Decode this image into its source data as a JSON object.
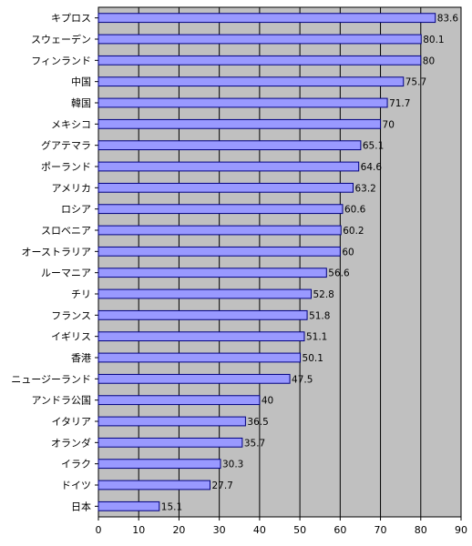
{
  "chart_data": {
    "type": "bar",
    "orientation": "horizontal",
    "title": "",
    "xlabel": "",
    "ylabel": "",
    "xlim": [
      0,
      90
    ],
    "ticks": [
      0,
      10,
      20,
      30,
      40,
      50,
      60,
      70,
      80,
      90
    ],
    "grid": true,
    "legend": "none",
    "colors": {
      "plot_background": "#c0c0c0",
      "bar_fill": "#9999ff",
      "bar_edge": "#000080",
      "gridline": "#000000"
    },
    "categories": [
      "キプロス",
      "スウェーデン",
      "フィンランド",
      "中国",
      "韓国",
      "メキシコ",
      "グアテマラ",
      "ポーランド",
      "アメリカ",
      "ロシア",
      "スロベニア",
      "オーストラリア",
      "ルーマニア",
      "チリ",
      "フランス",
      "イギリス",
      "香港",
      "ニュージーランド",
      "アンドラ公国",
      "イタリア",
      "オランダ",
      "イラク",
      "ドイツ",
      "日本"
    ],
    "values": [
      83.6,
      80.1,
      80,
      75.7,
      71.7,
      70,
      65.1,
      64.6,
      63.2,
      60.6,
      60.2,
      60,
      56.6,
      52.8,
      51.8,
      51.1,
      50.1,
      47.5,
      40,
      36.5,
      35.7,
      30.3,
      27.7,
      15.1
    ]
  }
}
